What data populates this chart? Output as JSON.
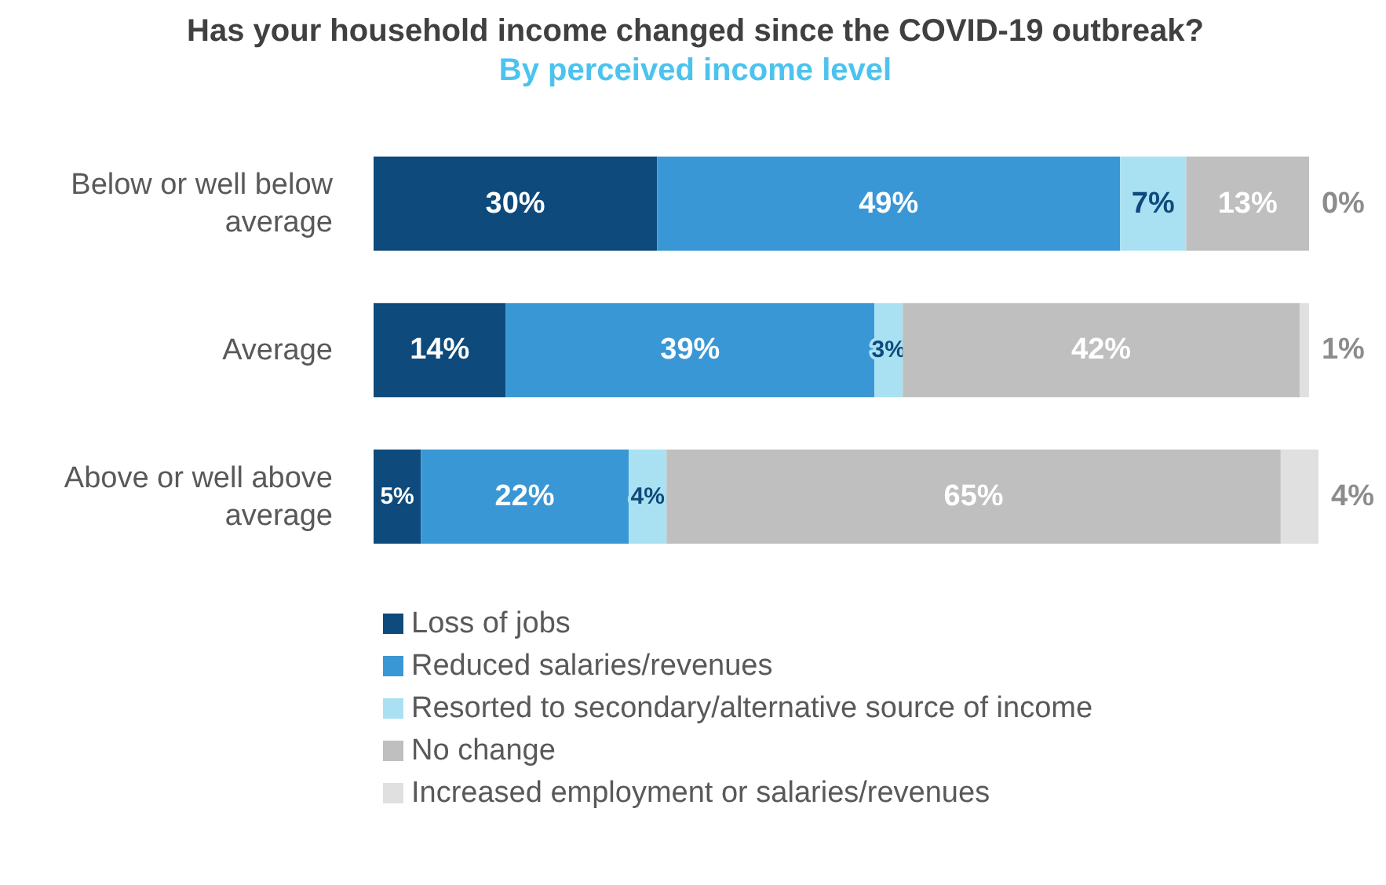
{
  "chart_data": {
    "type": "bar",
    "title": "Has your household income changed since the COVID-19 outbreak?",
    "subtitle": "By perceived income level",
    "categories": [
      "Below or well below average",
      "Average",
      "Above or well above average"
    ],
    "orientation": "horizontal",
    "stacked": true,
    "legend": "bottom",
    "series": [
      {
        "name": "Loss of jobs",
        "color": "#0e4a7b",
        "values": [
          30,
          14,
          5
        ],
        "value_labels": [
          "30%",
          "14%",
          "5%"
        ]
      },
      {
        "name": "Reduced salaries/revenues",
        "color": "#3a97d5",
        "values": [
          49,
          39,
          22
        ],
        "value_labels": [
          "49%",
          "39%",
          "22%"
        ]
      },
      {
        "name": "Resorted to secondary/alternative source of income",
        "color": "#a9e1f3",
        "values": [
          7,
          3,
          4
        ],
        "value_labels": [
          "7%",
          "3%",
          "4%"
        ]
      },
      {
        "name": "No change",
        "color": "#bfbfbf",
        "values": [
          13,
          42,
          65
        ],
        "value_labels": [
          "13%",
          "42%",
          "65%"
        ]
      },
      {
        "name": "Increased employment or salaries/revenues",
        "color": "#e0e0e0",
        "values": [
          0,
          1,
          4
        ],
        "value_labels": [
          "0%",
          "1%",
          "4%"
        ]
      }
    ]
  }
}
